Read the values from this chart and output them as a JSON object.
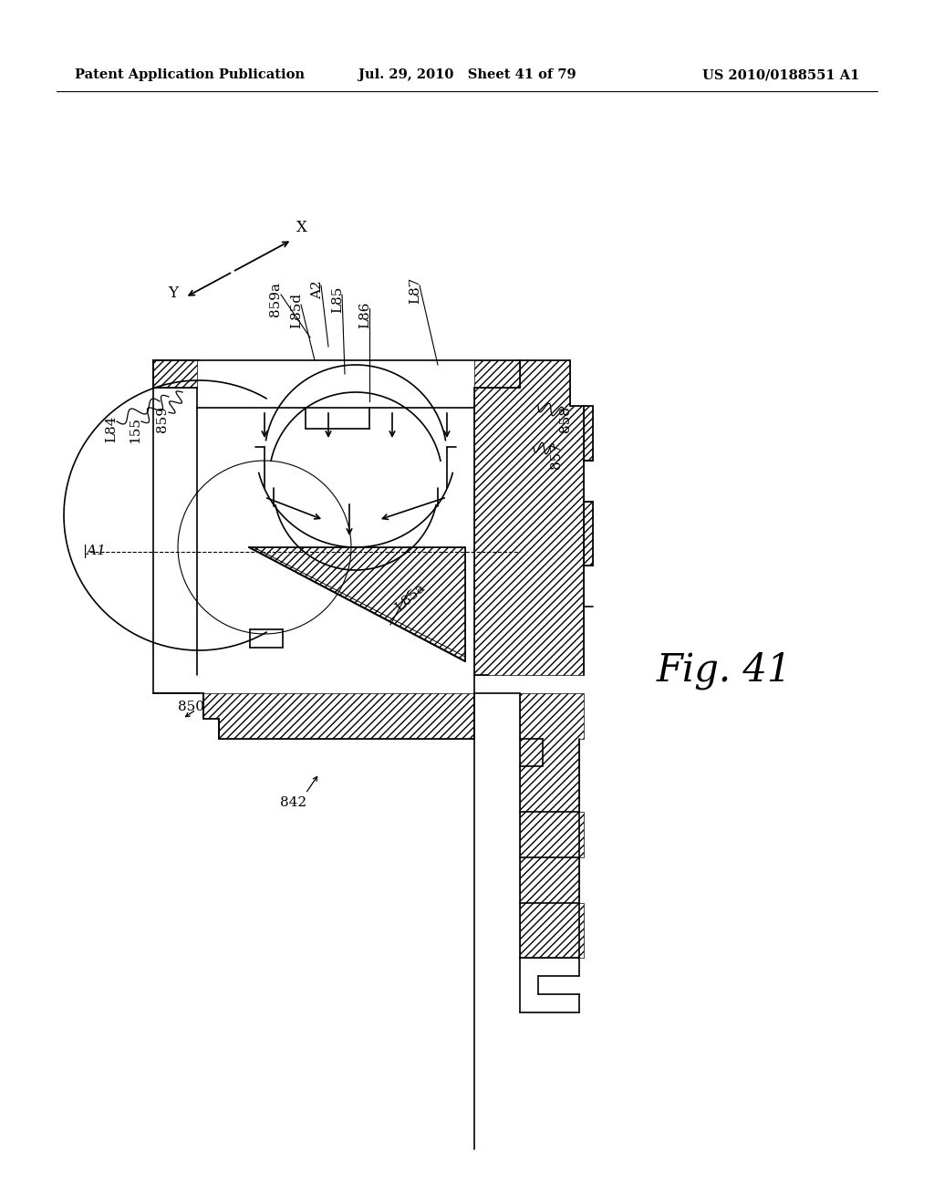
{
  "title_left": "Patent Application Publication",
  "title_mid": "Jul. 29, 2010   Sheet 41 of 79",
  "title_right": "US 2010/0188551 A1",
  "fig_label": "Fig. 41",
  "bg_color": "#ffffff"
}
